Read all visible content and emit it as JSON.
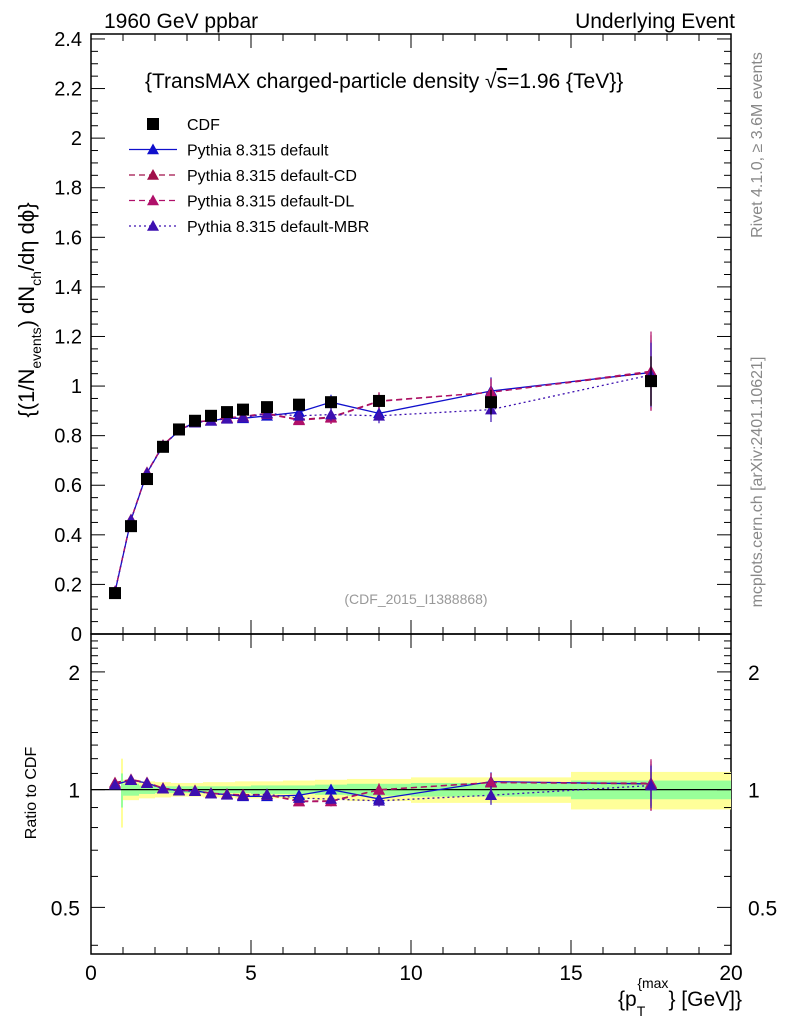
{
  "header": {
    "left": "1960 GeV ppbar",
    "right": "Underlying Event"
  },
  "side_labels": {
    "rivet": "Rivet 4.1.0, ≥ 3.6M events",
    "mcplots": "mcplots.cern.ch [arXiv:2401.10621]"
  },
  "colors": {
    "cdf": "#000000",
    "default": "#1010cc",
    "cd": "#a0104a",
    "dl": "#b0106a",
    "mbr": "#3d10b0",
    "band_inner": "#99ff99",
    "band_outer": "#ffff99"
  },
  "chart_data": {
    "type": "scatter",
    "title": "{TransMAX charged-particle density √s=1.96 {TeV}}",
    "title_main": "{TransMAX charged-particle density ",
    "title_sqrt": "√",
    "title_s": "s",
    "title_end": "=1.96 {TeV}}",
    "analysis_id": "(CDF_2015_I1388868)",
    "ylabel_main": "{(1/N",
    "ylabel_sub1": "events",
    "ylabel_mid": ") dN",
    "ylabel_sub2": "ch",
    "ylabel_end": "/dη dϕ}",
    "ratio_ylabel": "Ratio to CDF",
    "xlabel_pre": "{p",
    "xlabel_sub": "T",
    "xlabel_sup": "{max",
    "xlabel_post": "} [GeV]}",
    "xlim": [
      0,
      20
    ],
    "ylim": [
      0,
      2.42
    ],
    "ratio_ylim": [
      0.38,
      2.5
    ],
    "x_ticks": [
      0,
      5,
      10,
      15,
      20
    ],
    "y_ticks": [
      0,
      0.2,
      0.4,
      0.6,
      0.8,
      1,
      1.2,
      1.4,
      1.6,
      1.8,
      2,
      2.2,
      2.4
    ],
    "ratio_ticks": [
      0.5,
      1,
      2
    ],
    "legend": [
      "CDF",
      "Pythia 8.315 default",
      "Pythia 8.315 default-CD",
      "Pythia 8.315 default-DL",
      "Pythia 8.315 default-MBR"
    ],
    "x": [
      0.75,
      1.25,
      1.75,
      2.25,
      2.75,
      3.25,
      3.75,
      4.25,
      4.75,
      5.5,
      6.5,
      7.5,
      9.0,
      12.5,
      17.5
    ],
    "bins": [
      [
        0.5,
        1.0
      ],
      [
        1.0,
        1.5
      ],
      [
        1.5,
        2.0
      ],
      [
        2.0,
        2.5
      ],
      [
        2.5,
        3.0
      ],
      [
        3.0,
        3.5
      ],
      [
        3.5,
        4.0
      ],
      [
        4.0,
        4.5
      ],
      [
        4.5,
        5.0
      ],
      [
        5.0,
        6.0
      ],
      [
        6.0,
        7.0
      ],
      [
        7.0,
        8.0
      ],
      [
        8.0,
        10.0
      ],
      [
        10.0,
        15.0
      ],
      [
        15.0,
        20.0
      ]
    ],
    "cdf": {
      "name": "CDF",
      "values": [
        0.165,
        0.435,
        0.625,
        0.755,
        0.825,
        0.86,
        0.88,
        0.895,
        0.905,
        0.915,
        0.925,
        0.935,
        0.94,
        0.935,
        1.02
      ],
      "errors": [
        0.01,
        0.01,
        0.01,
        0.01,
        0.01,
        0.01,
        0.01,
        0.01,
        0.01,
        0.012,
        0.014,
        0.02,
        0.025,
        0.05,
        0.1
      ],
      "band_inner": [
        0.1,
        0.035,
        0.025,
        0.02,
        0.02,
        0.02,
        0.02,
        0.02,
        0.02,
        0.025,
        0.025,
        0.03,
        0.035,
        0.04,
        0.055
      ],
      "band_outer": [
        0.2,
        0.06,
        0.05,
        0.045,
        0.04,
        0.04,
        0.045,
        0.045,
        0.05,
        0.05,
        0.055,
        0.06,
        0.065,
        0.075,
        0.11
      ]
    },
    "series": [
      {
        "name": "Pythia 8.315 default",
        "style": "solid",
        "color": "#1010cc",
        "values": [
          0.17,
          0.46,
          0.65,
          0.76,
          0.82,
          0.855,
          0.86,
          0.87,
          0.87,
          0.88,
          0.895,
          0.935,
          0.89,
          0.98,
          1.055
        ],
        "errors": [
          0.004,
          0.005,
          0.005,
          0.006,
          0.006,
          0.007,
          0.008,
          0.008,
          0.01,
          0.01,
          0.014,
          0.03,
          0.03,
          0.055,
          0.13
        ]
      },
      {
        "name": "Pythia 8.315 default-CD",
        "style": "dashed",
        "color": "#a0104a",
        "values": [
          0.172,
          0.462,
          0.652,
          0.762,
          0.822,
          0.855,
          0.862,
          0.872,
          0.878,
          0.89,
          0.865,
          0.875,
          0.94,
          0.975,
          1.055
        ],
        "errors": [
          0.004,
          0.005,
          0.005,
          0.006,
          0.006,
          0.007,
          0.008,
          0.008,
          0.01,
          0.01,
          0.014,
          0.025,
          0.035,
          0.055,
          0.15
        ]
      },
      {
        "name": "Pythia 8.315 default-DL",
        "style": "dashed",
        "color": "#b0106a",
        "values": [
          0.171,
          0.461,
          0.651,
          0.761,
          0.821,
          0.855,
          0.861,
          0.871,
          0.876,
          0.888,
          0.862,
          0.872,
          0.938,
          0.975,
          1.06
        ],
        "errors": [
          0.004,
          0.005,
          0.005,
          0.006,
          0.006,
          0.007,
          0.008,
          0.008,
          0.01,
          0.01,
          0.014,
          0.025,
          0.035,
          0.055,
          0.16
        ]
      },
      {
        "name": "Pythia 8.315 default-MBR",
        "style": "dotted",
        "color": "#3d10b0",
        "values": [
          0.17,
          0.46,
          0.649,
          0.759,
          0.82,
          0.852,
          0.86,
          0.868,
          0.873,
          0.89,
          0.88,
          0.885,
          0.88,
          0.905,
          1.045
        ],
        "errors": [
          0.004,
          0.005,
          0.005,
          0.006,
          0.006,
          0.007,
          0.008,
          0.008,
          0.01,
          0.01,
          0.014,
          0.025,
          0.03,
          0.05,
          0.13
        ]
      }
    ]
  }
}
